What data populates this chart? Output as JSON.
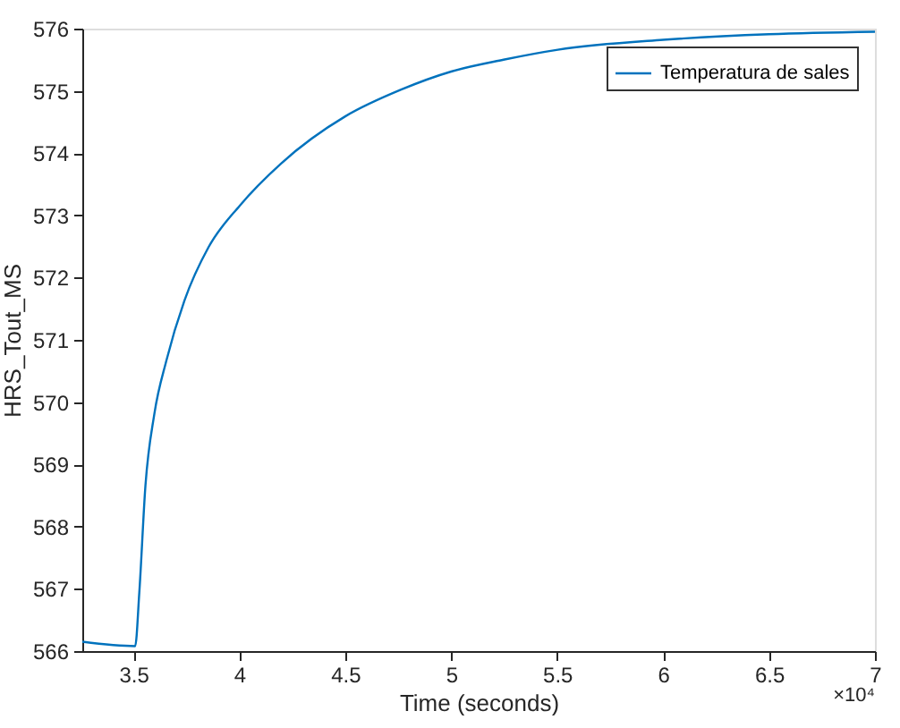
{
  "chart_data": {
    "type": "line",
    "xlabel": "Time (seconds)",
    "ylabel": "HRS_Tout_MS",
    "x": [
      3.259,
      3.5085,
      3.528,
      3.557,
      3.599,
      3.656,
      3.741,
      3.855,
      4.003,
      4.196,
      4.5,
      4.764,
      5.0,
      5.247,
      5.503,
      6.0,
      6.5,
      7.0
    ],
    "series": [
      {
        "name": "Temperatura de sales",
        "color": "#0072bd",
        "values": [
          566.15,
          566.08,
          566.94,
          568.66,
          569.81,
          570.67,
          571.63,
          572.49,
          573.16,
          573.83,
          574.59,
          575.02,
          575.31,
          575.5,
          575.66,
          575.82,
          575.91,
          575.95
        ]
      }
    ],
    "xlim": [
      3.259,
      7
    ],
    "xticks": [
      3.5,
      4,
      4.5,
      5,
      5.5,
      6,
      6.5,
      7
    ],
    "ylim": [
      566,
      576
    ],
    "yticks": [
      566,
      567,
      568,
      569,
      570,
      571,
      572,
      573,
      574,
      575,
      576
    ],
    "annotations": [
      "×10⁴"
    ],
    "legend": "top right",
    "grid": false
  }
}
